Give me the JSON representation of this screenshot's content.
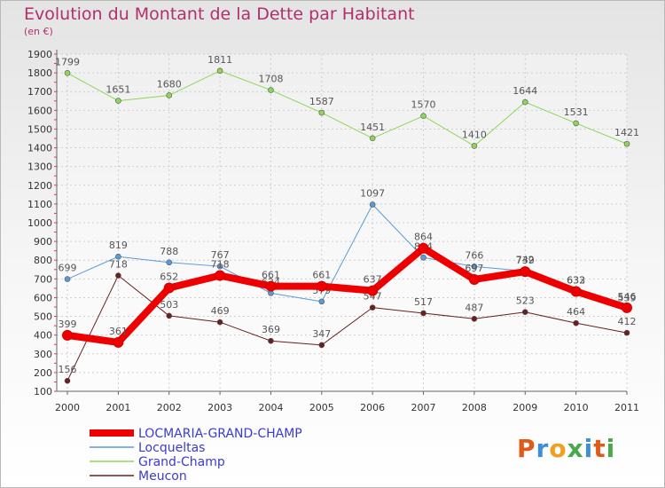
{
  "title": "Evolution du Montant de la Dette par Habitant",
  "unit": "(en €)",
  "logo": {
    "text": "Proxiti",
    "letters": [
      {
        "ch": "P",
        "color": "#e05a1a"
      },
      {
        "ch": "r",
        "color": "#3f8fd8"
      },
      {
        "ch": "o",
        "color": "#f0a020"
      },
      {
        "ch": "x",
        "color": "#4aa84a"
      },
      {
        "ch": "i",
        "color": "#3f8fd8"
      },
      {
        "ch": "t",
        "color": "#e05a1a"
      },
      {
        "ch": "i",
        "color": "#4aa84a"
      }
    ]
  },
  "chart_data": {
    "type": "line",
    "categories": [
      "2000",
      "2001",
      "2002",
      "2003",
      "2004",
      "2005",
      "2006",
      "2007",
      "2008",
      "2009",
      "2010",
      "2011"
    ],
    "ylim": [
      100,
      1900
    ],
    "yticks": [
      100,
      200,
      300,
      400,
      500,
      600,
      700,
      800,
      900,
      1000,
      1100,
      1200,
      1300,
      1400,
      1500,
      1600,
      1700,
      1800,
      1900
    ],
    "grid": true,
    "legend_position": "bottom-left",
    "series": [
      {
        "name": "Grand-Champ",
        "color": "#8ed55a",
        "values": [
          1799,
          1651,
          1680,
          1811,
          1708,
          1587,
          1451,
          1570,
          1410,
          1644,
          1531,
          1421
        ]
      },
      {
        "name": "Locqueltas",
        "color": "#5a9ad8",
        "values": [
          699,
          819,
          788,
          767,
          624,
          579,
          1097,
          814,
          766,
          742,
          632,
          539
        ]
      },
      {
        "name": "Meucon",
        "color": "#6a1f1f",
        "values": [
          156,
          718,
          503,
          469,
          369,
          347,
          547,
          517,
          487,
          523,
          464,
          412
        ]
      },
      {
        "name": "LOCMARIA-GRAND-CHAMP",
        "color": "#ee0000",
        "values": [
          399,
          361,
          652,
          718,
          661,
          661,
          637,
          864,
          697,
          739,
          633,
          546
        ]
      }
    ],
    "legend": [
      "LOCMARIA-GRAND-CHAMP",
      "Locqueltas",
      "Grand-Champ",
      "Meucon"
    ]
  }
}
